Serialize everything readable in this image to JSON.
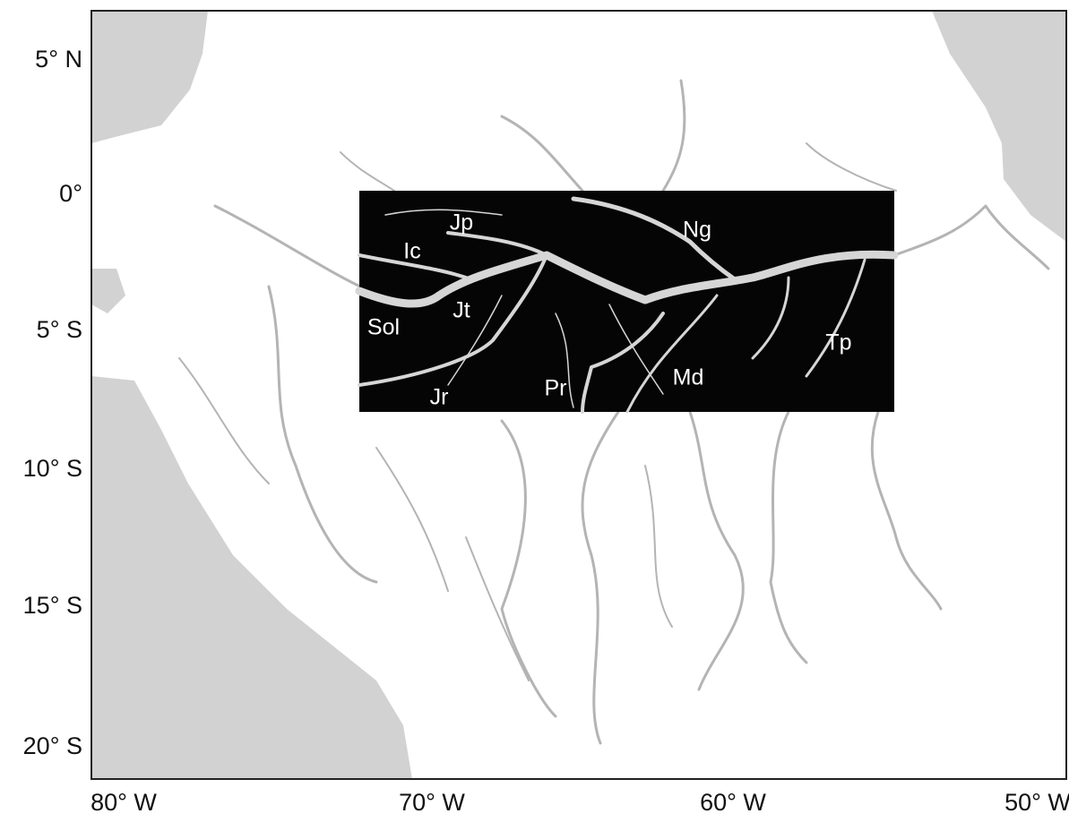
{
  "map": {
    "lat_labels": [
      "5° N",
      "0°",
      "5° S",
      "10° S",
      "15° S",
      "20° S"
    ],
    "lon_labels": [
      "80° W",
      "70° W",
      "60° W",
      "50° W"
    ],
    "river_labels": [
      "Jp",
      "Ic",
      "Ng",
      "Jt",
      "Sol",
      "Tp",
      "Md",
      "Pr",
      "Jr"
    ]
  }
}
